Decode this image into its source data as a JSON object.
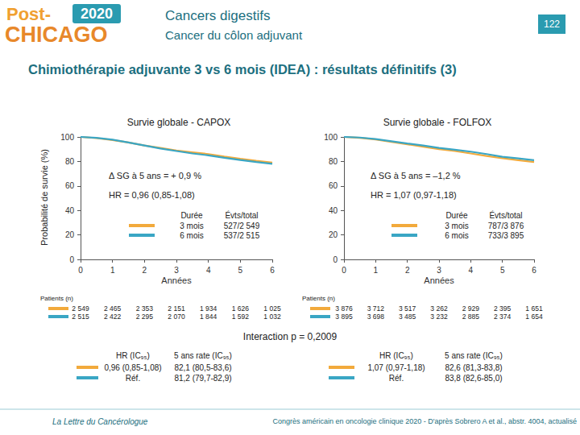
{
  "header": {
    "logo": {
      "line1": "Post-",
      "year": "2020",
      "line2": "CHICAGO"
    },
    "title": "Cancers digestifs",
    "subtitle": "Cancer du côlon adjuvant",
    "page": "122"
  },
  "slide_title": "Chimiothérapie adjuvante 3 vs 6 mois (IDEA) : résultats définitifs (3)",
  "y_axis_label": "Probabilité de survie (%)",
  "chart_data": [
    {
      "type": "line",
      "title": "Survie globale - CAPOX",
      "x_label": "Années",
      "x": [
        0,
        0.5,
        1,
        1.5,
        2,
        2.5,
        3,
        3.5,
        4,
        4.5,
        5,
        5.5,
        6
      ],
      "xlim": [
        0,
        6
      ],
      "xticks": [
        0,
        1,
        2,
        3,
        4,
        5,
        6
      ],
      "ylim": [
        0,
        100
      ],
      "yticks": [
        0,
        20,
        40,
        60,
        80,
        100
      ],
      "grid": false,
      "annotations": [
        "Δ SG à 5 ans = + 0,9 %",
        "HR = 0,96 (0,85-1,08)"
      ],
      "events_header": [
        "Durée",
        "Évts/total"
      ],
      "at_risk_label": "Patients (n)",
      "summary_header": [
        "HR (IC₉₅)",
        "5 ans rate (IC₉₅)"
      ],
      "series": [
        {
          "name": "3 mois",
          "color": "#f2aa3c",
          "values": [
            100,
            99,
            97.5,
            95.5,
            93,
            91,
            89,
            87.5,
            86,
            84,
            82.1,
            80.5,
            79
          ],
          "events": "527/2 549",
          "at_risk": [
            "2 549",
            "2 465",
            "2 353",
            "2 151",
            "1 934",
            "1 626",
            "1 025"
          ],
          "hr": "0,96 (0,85-1,08)",
          "rate": "82,1 (80,5-83,6)"
        },
        {
          "name": "6 mois",
          "color": "#3aa6c4",
          "values": [
            100,
            99.2,
            97.8,
            95.5,
            93,
            90.5,
            88.5,
            86.5,
            85,
            83,
            81.2,
            79.5,
            78
          ],
          "events": "537/2 515",
          "at_risk": [
            "2 515",
            "2 422",
            "2 295",
            "2 070",
            "1 844",
            "1 592",
            "1 032"
          ],
          "hr": "Réf.",
          "rate": "81,2 (79,7-82,9)"
        }
      ]
    },
    {
      "type": "line",
      "title": "Survie globale - FOLFOX",
      "x_label": "Années",
      "x": [
        0,
        0.5,
        1,
        1.5,
        2,
        2.5,
        3,
        3.5,
        4,
        4.5,
        5,
        5.5,
        6
      ],
      "xlim": [
        0,
        6
      ],
      "xticks": [
        0,
        1,
        2,
        3,
        4,
        5,
        6
      ],
      "ylim": [
        0,
        100
      ],
      "yticks": [
        0,
        20,
        40,
        60,
        80,
        100
      ],
      "grid": false,
      "annotations": [
        "Δ SG à 5 ans = –1,2 %",
        "HR = 1,07 (0,97-1,18)"
      ],
      "events_header": [
        "Durée",
        "Évts/total"
      ],
      "at_risk_label": "Patients (n)",
      "summary_header": [
        "HR (IC₉₅)",
        "5 ans rate (IC₉₅)"
      ],
      "series": [
        {
          "name": "3 mois",
          "color": "#f2aa3c",
          "values": [
            100,
            99.3,
            98,
            96,
            94,
            92,
            90,
            88.5,
            86.5,
            84.5,
            82.6,
            81,
            79.5
          ],
          "events": "787/3 876",
          "at_risk": [
            "3 876",
            "3 712",
            "3 517",
            "3 262",
            "2 929",
            "2 395",
            "1 651"
          ],
          "hr": "1,07 (0,97-1,18)",
          "rate": "82,6 (81,3-83,8)"
        },
        {
          "name": "6 mois",
          "color": "#3aa6c4",
          "values": [
            100,
            99.5,
            98.3,
            96.5,
            94.7,
            93,
            91,
            89.5,
            88,
            86,
            83.8,
            82.5,
            81
          ],
          "events": "733/3 895",
          "at_risk": [
            "3 895",
            "3 698",
            "3 485",
            "3 232",
            "2 885",
            "2 374",
            "1 654"
          ],
          "hr": "Réf.",
          "rate": "83,8 (82,6-85,0)"
        }
      ]
    }
  ],
  "interaction": "Interaction p = 0,2009",
  "footer": {
    "left": "La Lettre du Cancérologue",
    "right": "Congrès américain en oncologie clinique 2020 - D'après Sobrero A et al., abstr. 4004, actualisé"
  }
}
